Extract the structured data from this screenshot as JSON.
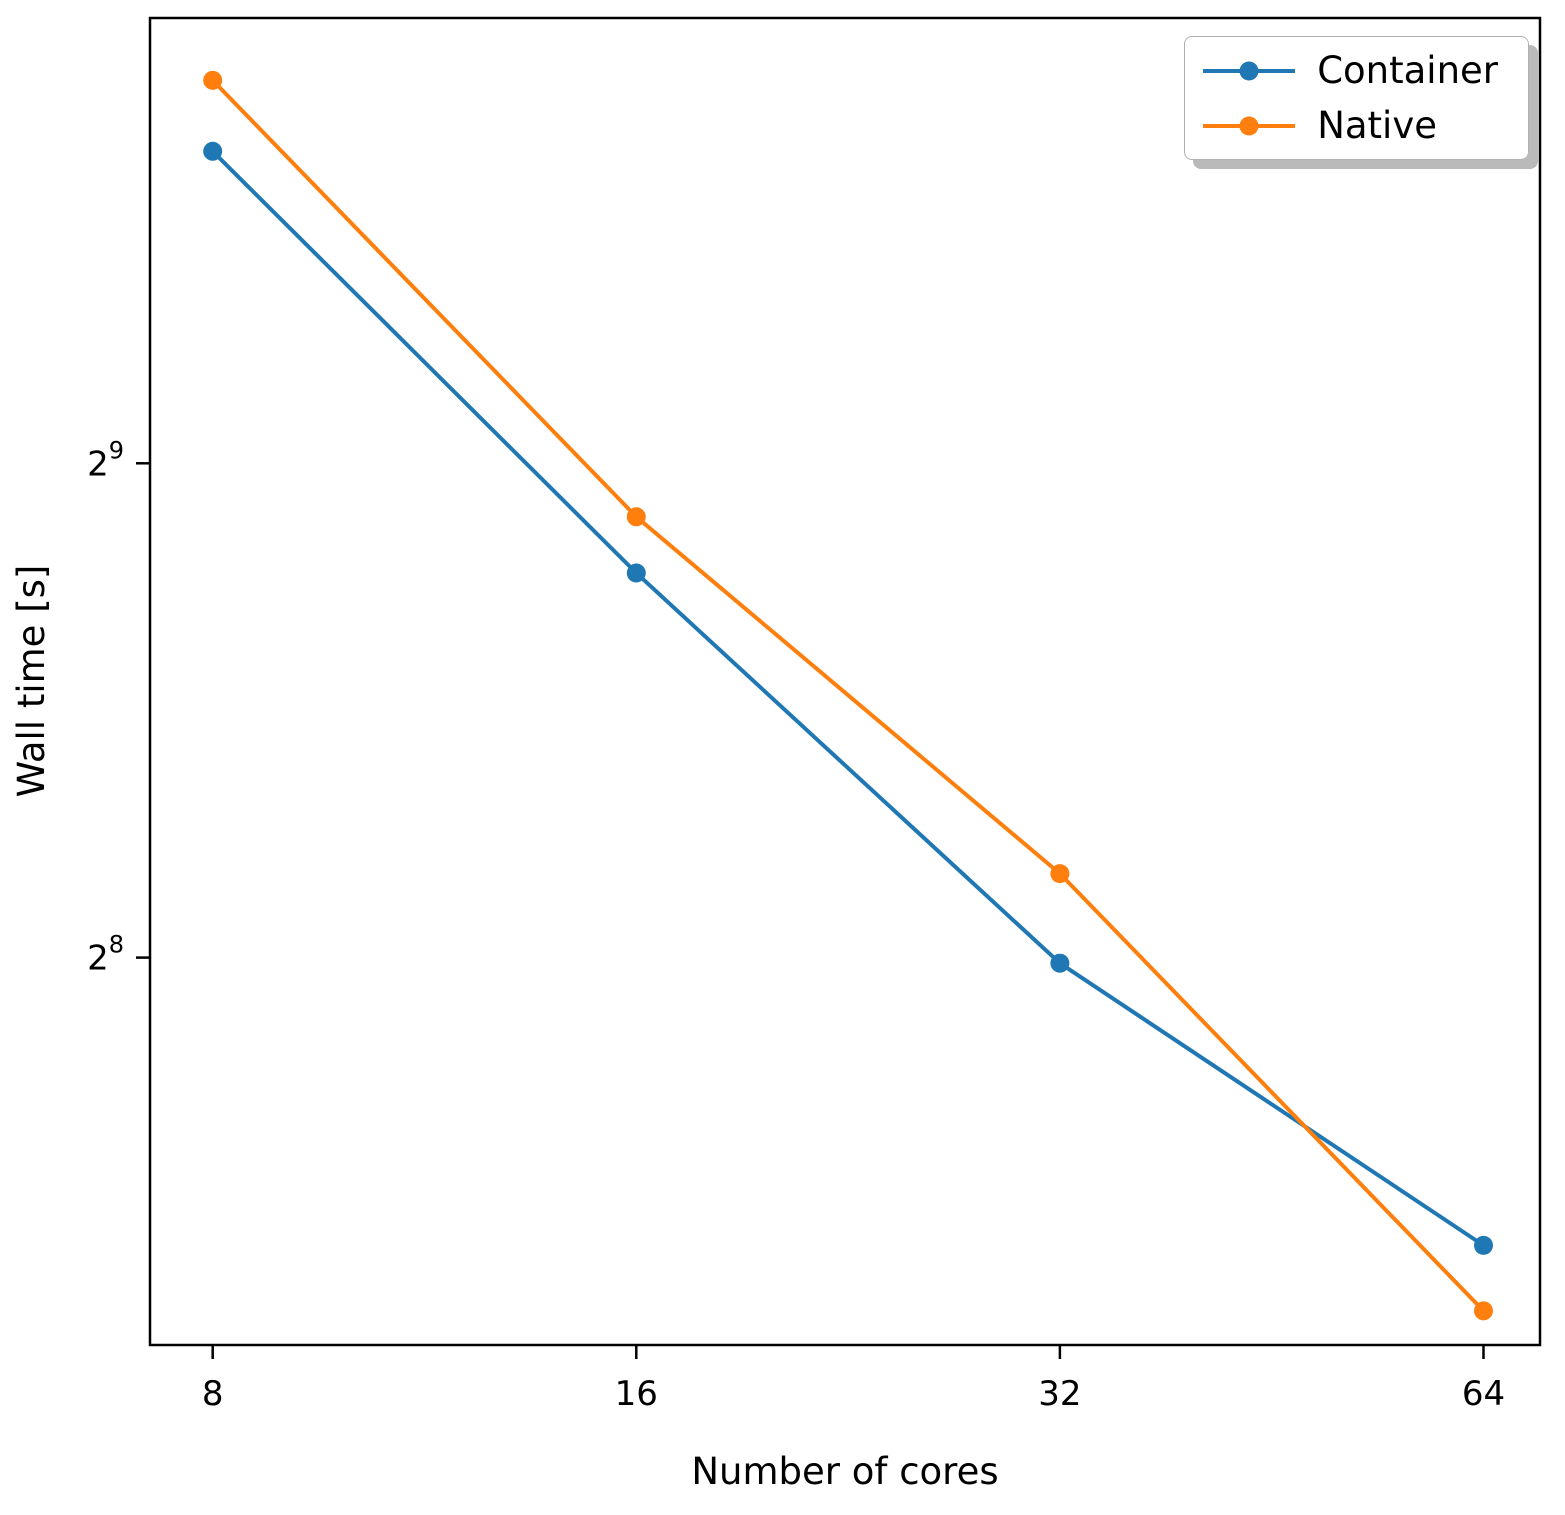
{
  "chart_data": {
    "type": "line",
    "title": "",
    "xlabel": "Number of cores",
    "ylabel": "Wall time [s]",
    "x_scale": "log2",
    "y_scale": "log2",
    "x": [
      8,
      16,
      32,
      64
    ],
    "series": [
      {
        "name": "Container",
        "color": "#1f77b4",
        "values": [
          793,
          439,
          254,
          171
        ]
      },
      {
        "name": "Native",
        "color": "#ff7f0e",
        "values": [
          876,
          475,
          288,
          156
        ]
      }
    ],
    "x_ticks": [
      {
        "label": "8",
        "value": 8
      },
      {
        "label": "16",
        "value": 16
      },
      {
        "label": "32",
        "value": 32
      },
      {
        "label": "64",
        "value": 64
      }
    ],
    "y_ticks": [
      {
        "base": "2",
        "exp": "9",
        "value": 512
      },
      {
        "base": "2",
        "exp": "8",
        "value": 256
      }
    ],
    "xlim": [
      7.22,
      70.2
    ],
    "ylim": [
      148.7,
      956
    ],
    "grid": false,
    "legend": {
      "location": "upper right",
      "entries": [
        "Container",
        "Native"
      ]
    }
  }
}
